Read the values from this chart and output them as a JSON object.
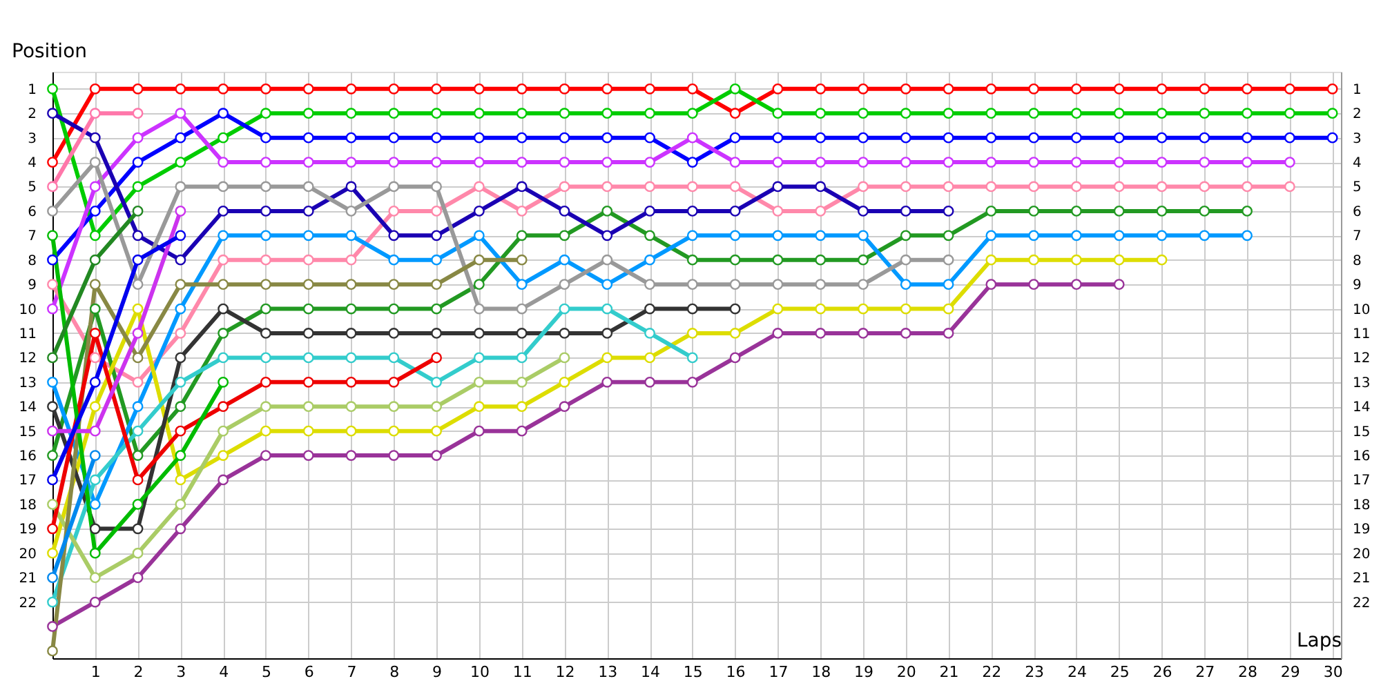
{
  "chart_data": {
    "type": "line",
    "xlabel": "Laps",
    "ylabel": "Position",
    "x": [
      0,
      1,
      2,
      3,
      4,
      5,
      6,
      7,
      8,
      9,
      10,
      11,
      12,
      13,
      14,
      15,
      16,
      17,
      18,
      19,
      20,
      21,
      22,
      23,
      24,
      25,
      26,
      27,
      28,
      29,
      30
    ],
    "xlim": [
      0,
      30.2
    ],
    "xticks": [
      1,
      2,
      3,
      4,
      5,
      6,
      7,
      8,
      9,
      10,
      11,
      12,
      13,
      14,
      15,
      16,
      17,
      18,
      19,
      20,
      21,
      22,
      23,
      24,
      25,
      26,
      27,
      28,
      29,
      30
    ],
    "ylim": [
      24.3,
      0.3
    ],
    "yticks": [
      1,
      2,
      3,
      4,
      5,
      6,
      7,
      8,
      9,
      10,
      11,
      12,
      13,
      14,
      15,
      16,
      17,
      18,
      19,
      20,
      21,
      22
    ],
    "y2lim": [
      24.3,
      0.3
    ],
    "y2ticks": [
      1,
      2,
      3,
      4,
      5,
      6,
      7,
      8,
      9,
      10,
      11,
      12,
      13,
      14,
      15,
      16,
      17,
      18,
      19,
      20,
      21,
      22
    ],
    "grid": true,
    "legend": false,
    "marker": "circle",
    "line_style": "solid",
    "series": [
      {
        "color": "#ff0000",
        "values": [
          4,
          1,
          1,
          1,
          1,
          1,
          1,
          1,
          1,
          1,
          1,
          1,
          1,
          1,
          1,
          1,
          2,
          1,
          1,
          1,
          1,
          1,
          1,
          1,
          1,
          1,
          1,
          1,
          1,
          1,
          1
        ]
      },
      {
        "color": "#00cc00",
        "values": [
          1,
          7,
          5,
          4,
          3,
          2,
          2,
          2,
          2,
          2,
          2,
          2,
          2,
          2,
          2,
          2,
          1,
          2,
          2,
          2,
          2,
          2,
          2,
          2,
          2,
          2,
          2,
          2,
          2,
          2,
          2
        ]
      },
      {
        "color": "#0000ff",
        "values": [
          8,
          6,
          4,
          3,
          2,
          3,
          3,
          3,
          3,
          3,
          3,
          3,
          3,
          3,
          3,
          4,
          3,
          3,
          3,
          3,
          3,
          3,
          3,
          3,
          3,
          3,
          3,
          3,
          3,
          3,
          3
        ]
      },
      {
        "color": "#cc33ff",
        "values": [
          10,
          5,
          3,
          2,
          4,
          4,
          4,
          4,
          4,
          4,
          4,
          4,
          4,
          4,
          4,
          3,
          4,
          4,
          4,
          4,
          4,
          4,
          4,
          4,
          4,
          4,
          4,
          4,
          4,
          4,
          null
        ]
      },
      {
        "color": "#ff88aa",
        "values": [
          9,
          12,
          13,
          11,
          8,
          8,
          8,
          8,
          6,
          6,
          5,
          6,
          5,
          5,
          5,
          5,
          5,
          6,
          6,
          5,
          5,
          5,
          5,
          5,
          5,
          5,
          5,
          5,
          5,
          5,
          null
        ]
      },
      {
        "color": "#229922",
        "values": [
          16,
          10,
          16,
          14,
          11,
          10,
          10,
          10,
          10,
          10,
          9,
          7,
          7,
          6,
          7,
          8,
          8,
          8,
          8,
          8,
          7,
          7,
          6,
          6,
          6,
          6,
          6,
          6,
          6,
          null,
          null
        ]
      },
      {
        "color": "#0099ff",
        "values": [
          13,
          18,
          14,
          10,
          7,
          7,
          7,
          7,
          8,
          8,
          7,
          9,
          8,
          9,
          8,
          7,
          7,
          7,
          7,
          7,
          9,
          9,
          7,
          7,
          7,
          7,
          7,
          7,
          7,
          null,
          null
        ]
      },
      {
        "color": "#dddd00",
        "values": [
          20,
          14,
          10,
          17,
          16,
          15,
          15,
          15,
          15,
          15,
          14,
          14,
          13,
          12,
          12,
          11,
          11,
          10,
          10,
          10,
          10,
          10,
          8,
          8,
          8,
          8,
          8,
          null,
          null,
          null,
          null
        ]
      },
      {
        "color": "#993399",
        "values": [
          23,
          22,
          21,
          19,
          17,
          16,
          16,
          16,
          16,
          16,
          15,
          15,
          14,
          13,
          13,
          13,
          12,
          11,
          11,
          11,
          11,
          11,
          9,
          9,
          9,
          9,
          null,
          null,
          null,
          null,
          null
        ]
      },
      {
        "color": "#1a00b3",
        "values": [
          2,
          3,
          7,
          8,
          6,
          6,
          6,
          5,
          7,
          7,
          6,
          5,
          6,
          7,
          6,
          6,
          6,
          5,
          5,
          6,
          6,
          6,
          null,
          null,
          null,
          null,
          null,
          null,
          null,
          null,
          null
        ]
      },
      {
        "color": "#999999",
        "values": [
          6,
          4,
          9,
          5,
          5,
          5,
          5,
          6,
          5,
          5,
          10,
          10,
          9,
          8,
          9,
          9,
          9,
          9,
          9,
          9,
          8,
          8,
          null,
          null,
          null,
          null,
          null,
          null,
          null,
          null,
          null
        ]
      },
      {
        "color": "#333333",
        "values": [
          14,
          19,
          19,
          12,
          10,
          11,
          11,
          11,
          11,
          11,
          11,
          11,
          11,
          11,
          10,
          10,
          10,
          null,
          null,
          null,
          null,
          null,
          null,
          null,
          null,
          null,
          null,
          null,
          null,
          null,
          null
        ]
      },
      {
        "color": "#33cccc",
        "values": [
          22,
          17,
          15,
          13,
          12,
          12,
          12,
          12,
          12,
          13,
          12,
          12,
          10,
          10,
          11,
          12,
          null,
          null,
          null,
          null,
          null,
          null,
          null,
          null,
          null,
          null,
          null,
          null,
          null,
          null,
          null
        ]
      },
      {
        "color": "#aacc66",
        "values": [
          18,
          21,
          20,
          18,
          15,
          14,
          14,
          14,
          14,
          14,
          13,
          13,
          12,
          null,
          null,
          null,
          null,
          null,
          null,
          null,
          null,
          null,
          null,
          null,
          null,
          null,
          null,
          null,
          null,
          null,
          null
        ]
      },
      {
        "color": "#888844",
        "values": [
          24,
          9,
          12,
          9,
          9,
          9,
          9,
          9,
          9,
          9,
          8,
          8,
          null,
          null,
          null,
          null,
          null,
          null,
          null,
          null,
          null,
          null,
          null,
          null,
          null,
          null,
          null,
          null,
          null,
          null,
          null
        ]
      },
      {
        "color": "#ee0000",
        "values": [
          19,
          11,
          17,
          15,
          14,
          13,
          13,
          13,
          13,
          12,
          null,
          null,
          null,
          null,
          null,
          null,
          null,
          null,
          null,
          null,
          null,
          null,
          null,
          null,
          null,
          null,
          null,
          null,
          null,
          null,
          null
        ]
      },
      {
        "color": "#00bb00",
        "values": [
          7,
          20,
          18,
          16,
          13,
          null,
          null,
          null,
          null,
          null,
          null,
          null,
          null,
          null,
          null,
          null,
          null,
          null,
          null,
          null,
          null,
          null,
          null,
          null,
          null,
          null,
          null,
          null,
          null,
          null,
          null
        ]
      },
      {
        "color": "#cc33ee",
        "values": [
          15,
          15,
          11,
          6,
          null,
          null,
          null,
          null,
          null,
          null,
          null,
          null,
          null,
          null,
          null,
          null,
          null,
          null,
          null,
          null,
          null,
          null,
          null,
          null,
          null,
          null,
          null,
          null,
          null,
          null,
          null
        ]
      },
      {
        "color": "#0000ee",
        "values": [
          17,
          13,
          8,
          7,
          null,
          null,
          null,
          null,
          null,
          null,
          null,
          null,
          null,
          null,
          null,
          null,
          null,
          null,
          null,
          null,
          null,
          null,
          null,
          null,
          null,
          null,
          null,
          null,
          null,
          null,
          null
        ]
      },
      {
        "color": "#228822",
        "values": [
          12,
          8,
          6,
          null,
          null,
          null,
          null,
          null,
          null,
          null,
          null,
          null,
          null,
          null,
          null,
          null,
          null,
          null,
          null,
          null,
          null,
          null,
          null,
          null,
          null,
          null,
          null,
          null,
          null,
          null,
          null
        ]
      },
      {
        "color": "#ff77aa",
        "values": [
          5,
          2,
          2,
          null,
          null,
          null,
          null,
          null,
          null,
          null,
          null,
          null,
          null,
          null,
          null,
          null,
          null,
          null,
          null,
          null,
          null,
          null,
          null,
          null,
          null,
          null,
          null,
          null,
          null,
          null,
          null
        ]
      },
      {
        "color": "#0088ee",
        "values": [
          21,
          16,
          null,
          null,
          null,
          null,
          null,
          null,
          null,
          null,
          null,
          null,
          null,
          null,
          null,
          null,
          null,
          null,
          null,
          null,
          null,
          null,
          null,
          null,
          null,
          null,
          null,
          null,
          null,
          null,
          null
        ]
      }
    ]
  }
}
